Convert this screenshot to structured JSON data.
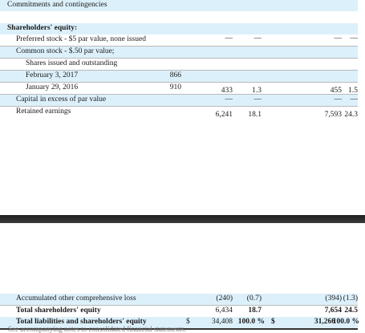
{
  "top": {
    "commitments": "Commitments and contingencies"
  },
  "equity": {
    "heading": "Shareholders' equity:",
    "preferred": {
      "label": "Preferred stock - $5 par value, none issued",
      "amt1": "—",
      "pct1": "—",
      "amt2": "—",
      "pct2": "—"
    },
    "common": {
      "label": "Common stock - $.50 par value;"
    },
    "shares_heading": "Shares issued and outstanding",
    "feb": {
      "label": "February 3, 2017",
      "shares": "866"
    },
    "jan": {
      "label": "January 29, 2016",
      "shares": "910",
      "amt1": "433",
      "pct1": "1.3",
      "amt2": "455",
      "pct2": "1.5"
    },
    "capital": {
      "label": "Capital in excess of par value",
      "amt1": "—",
      "pct1": "—",
      "amt2": "—",
      "pct2": "—"
    },
    "retained": {
      "label": "Retained earnings",
      "amt1": "6,241",
      "pct1": "18.1",
      "amt2": "7,593",
      "pct2": "24.3"
    }
  },
  "bottom": {
    "aoci": {
      "label": "Accumulated other comprehensive loss",
      "amt1": "(240)",
      "pct1": "(0.7)",
      "amt2": "(394)",
      "pct2": "(1.3)"
    },
    "total_equity": {
      "label": "Total shareholders' equity",
      "amt1": "6,434",
      "pct1": "18.7",
      "amt2": "7,654",
      "pct2": "24.5"
    },
    "total_liab": {
      "label": "Total liabilities and shareholders' equity",
      "dollar1": "$",
      "amt1": "34,408",
      "pct1": "100.0 %",
      "dollar2": "$",
      "amt2": "31,266",
      "pct2": "100.0 %"
    },
    "footnote": "See accompanying notes to consolidated financial statements."
  }
}
